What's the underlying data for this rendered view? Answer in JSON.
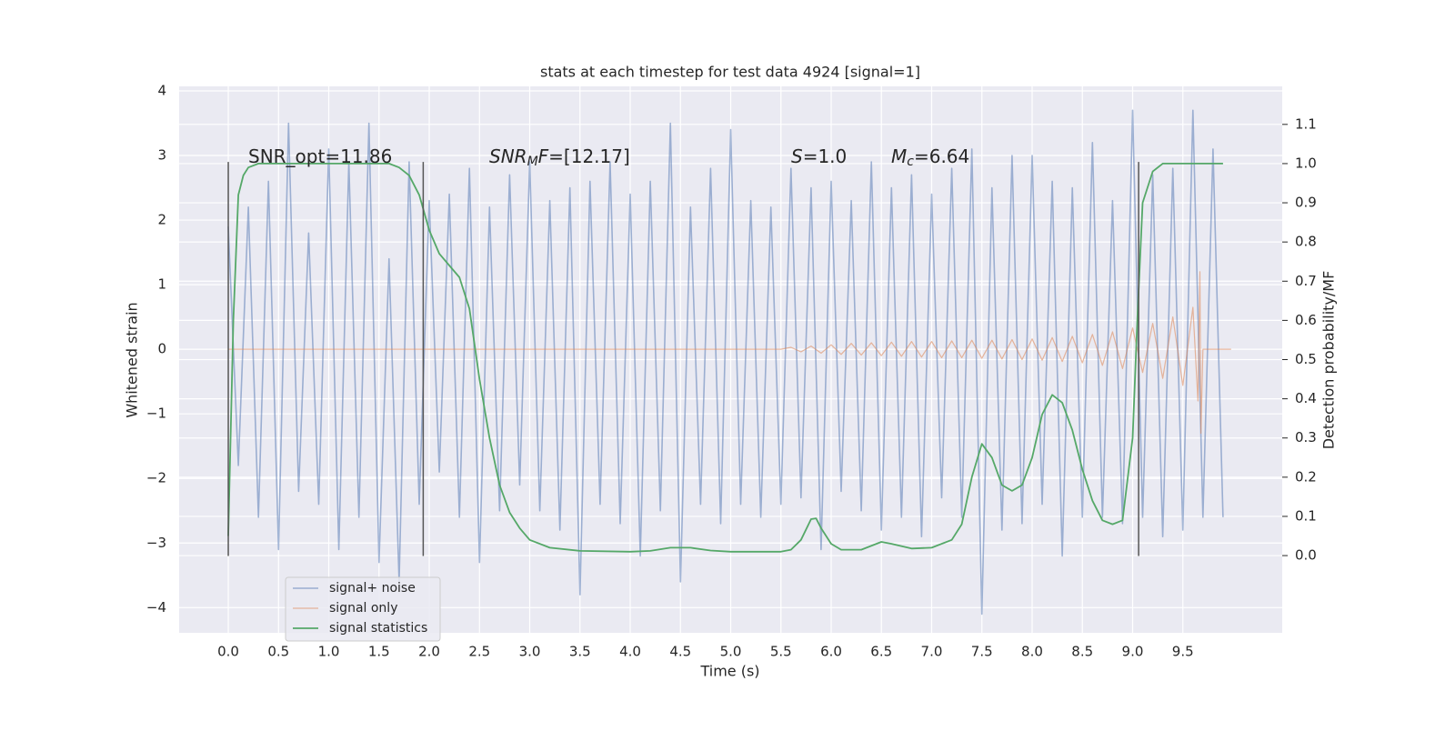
{
  "chart_data": {
    "type": "line",
    "title": "stats at each timestep for test data 4924 [signal=1]",
    "xlabel": "Time (s)",
    "ylabel": "Whitened strain",
    "y2label": "Detection probability/MF",
    "xlim": [
      -0.489,
      10.489
    ],
    "ylim": [
      -4.39,
      4.07
    ],
    "y2lim": [
      -0.197,
      1.197
    ],
    "xticks": [
      {
        "value": 0,
        "label": "0.0"
      },
      0.5,
      {
        "value": 1,
        "label": "1.0"
      },
      1.5,
      {
        "value": 2,
        "label": "2.0"
      },
      2.5,
      {
        "value": 3,
        "label": "3.0"
      },
      3.5,
      {
        "value": 4,
        "label": "4.0"
      },
      4.5,
      {
        "value": 5,
        "label": "5.0"
      },
      5.5,
      {
        "value": 6,
        "label": "6.0"
      },
      6.5,
      {
        "value": 7,
        "label": "7.0"
      },
      7.5,
      {
        "value": 8,
        "label": "8.0"
      },
      8.5,
      {
        "value": 9,
        "label": "9.0"
      },
      9.5
    ],
    "yticks": [
      {
        "value": -4,
        "label": "−4"
      },
      {
        "value": -3,
        "label": "−3"
      },
      {
        "value": -2,
        "label": "−2"
      },
      {
        "value": -1,
        "label": "−1"
      },
      0,
      1,
      2,
      3,
      4
    ],
    "y2ticks": [
      {
        "value": 0,
        "label": "0.0"
      },
      0.1,
      0.2,
      0.3,
      0.4,
      0.5,
      0.6,
      0.7,
      0.8,
      0.9,
      {
        "value": 1,
        "label": "1.0"
      },
      1.1
    ],
    "grid": true,
    "legend": "lower left",
    "series": [
      {
        "name": "signal+ noise",
        "color": "#4c72b0",
        "x": [
          0,
          0.1,
          0.2,
          0.3,
          0.4,
          0.5,
          0.6,
          0.7,
          0.8,
          0.9,
          1,
          1.1,
          1.2,
          1.3,
          1.4,
          1.5,
          1.6,
          1.7,
          1.8,
          1.9,
          2,
          2.1,
          2.2,
          2.3,
          2.4,
          2.5,
          2.6,
          2.7,
          2.8,
          2.9,
          3,
          3.1,
          3.2,
          3.3,
          3.4,
          3.5,
          3.6,
          3.7,
          3.8,
          3.9,
          4,
          4.1,
          4.2,
          4.3,
          4.4,
          4.5,
          4.6,
          4.7,
          4.8,
          4.9,
          5,
          5.1,
          5.2,
          5.3,
          5.4,
          5.5,
          5.6,
          5.7,
          5.8,
          5.9,
          6,
          6.1,
          6.2,
          6.3,
          6.4,
          6.5,
          6.6,
          6.7,
          6.8,
          6.9,
          7,
          7.1,
          7.2,
          7.3,
          7.4,
          7.5,
          7.6,
          7.7,
          7.8,
          7.9,
          8,
          8.1,
          8.2,
          8.3,
          8.4,
          8.5,
          8.6,
          8.7,
          8.8,
          8.9,
          9,
          9.1,
          9.2,
          9.3,
          9.4,
          9.5,
          9.6,
          9.7,
          9.8,
          9.9
        ],
        "values": [
          1.9,
          -1.8,
          2.2,
          -2.6,
          2.6,
          -3.1,
          3.5,
          -2.2,
          1.8,
          -2.4,
          3.1,
          -3.1,
          2.9,
          -2.6,
          3.5,
          -3.3,
          1.4,
          -3.6,
          2.9,
          -2.4,
          2.3,
          -1.9,
          2.4,
          -2.6,
          2.8,
          -3.3,
          2.2,
          -2.5,
          2.7,
          -2.1,
          2.9,
          -2.5,
          2.3,
          -2.8,
          2.5,
          -3.8,
          2.6,
          -2.4,
          2.9,
          -2.7,
          2.4,
          -3.2,
          2.6,
          -2.5,
          3.5,
          -3.6,
          2.2,
          -2.4,
          2.8,
          -2.7,
          3.4,
          -2.4,
          2.3,
          -2.6,
          2.2,
          -2.4,
          2.8,
          -2.3,
          2.5,
          -3.1,
          2.6,
          -2.2,
          2.3,
          -2.5,
          2.9,
          -2.8,
          2.5,
          -2.6,
          2.7,
          -2.9,
          2.4,
          -2.3,
          2.8,
          -2.6,
          3.1,
          -4.1,
          2.5,
          -2.8,
          3.0,
          -2.7,
          3.0,
          -2.4,
          2.6,
          -3.2,
          2.5,
          -2.6,
          3.2,
          -2.6,
          2.3,
          -2.7,
          3.7,
          -2.6,
          2.7,
          -2.9,
          2.8,
          -2.8,
          3.7,
          -2.6,
          3.1,
          -2.6
        ]
      },
      {
        "name": "signal only",
        "color": "#dd8452",
        "x": [
          0,
          5.5,
          5.6,
          5.7,
          5.8,
          5.9,
          6,
          6.1,
          6.2,
          6.3,
          6.4,
          6.5,
          6.6,
          6.7,
          6.8,
          6.9,
          7,
          7.1,
          7.2,
          7.3,
          7.4,
          7.5,
          7.6,
          7.7,
          7.8,
          7.9,
          8,
          8.1,
          8.2,
          8.3,
          8.4,
          8.5,
          8.6,
          8.7,
          8.8,
          8.9,
          9,
          9.1,
          9.2,
          9.3,
          9.4,
          9.5,
          9.6,
          9.65,
          9.67,
          9.68,
          9.7,
          9.98
        ],
        "values": [
          0,
          0,
          0.03,
          -0.04,
          0.05,
          -0.06,
          0.07,
          -0.08,
          0.09,
          -0.09,
          0.1,
          -0.1,
          0.11,
          -0.11,
          0.12,
          -0.12,
          0.12,
          -0.13,
          0.13,
          -0.13,
          0.14,
          -0.14,
          0.14,
          -0.15,
          0.15,
          -0.16,
          0.16,
          -0.17,
          0.18,
          -0.19,
          0.2,
          -0.21,
          0.23,
          -0.25,
          0.27,
          -0.3,
          0.33,
          -0.36,
          0.4,
          -0.45,
          0.5,
          -0.56,
          0.65,
          -0.8,
          1.2,
          -1.3,
          0,
          0
        ]
      },
      {
        "name": "signal statistics",
        "color": "#55a868",
        "axis": "y2",
        "x": [
          0,
          0.05,
          0.1,
          0.15,
          0.2,
          0.3,
          1,
          1.6,
          1.7,
          1.8,
          1.9,
          2,
          2.1,
          2.2,
          2.3,
          2.4,
          2.5,
          2.6,
          2.7,
          2.8,
          2.9,
          3,
          3.2,
          3.5,
          4,
          4.2,
          4.4,
          4.6,
          4.8,
          5,
          5.5,
          5.6,
          5.7,
          5.8,
          5.85,
          5.9,
          6,
          6.1,
          6.3,
          6.5,
          6.6,
          6.8,
          7,
          7.2,
          7.3,
          7.4,
          7.5,
          7.6,
          7.7,
          7.8,
          7.9,
          8,
          8.1,
          8.2,
          8.3,
          8.4,
          8.5,
          8.6,
          8.7,
          8.8,
          8.9,
          9,
          9.05,
          9.1,
          9.2,
          9.3,
          9.9
        ],
        "values": [
          0.05,
          0.6,
          0.92,
          0.97,
          0.99,
          1.0,
          1.0,
          1.0,
          0.99,
          0.97,
          0.92,
          0.83,
          0.77,
          0.74,
          0.71,
          0.63,
          0.45,
          0.3,
          0.18,
          0.11,
          0.07,
          0.04,
          0.02,
          0.012,
          0.01,
          0.012,
          0.02,
          0.02,
          0.013,
          0.01,
          0.01,
          0.015,
          0.04,
          0.093,
          0.095,
          0.07,
          0.03,
          0.015,
          0.015,
          0.035,
          0.03,
          0.018,
          0.02,
          0.04,
          0.08,
          0.2,
          0.285,
          0.25,
          0.18,
          0.165,
          0.18,
          0.25,
          0.36,
          0.41,
          0.39,
          0.32,
          0.22,
          0.14,
          0.09,
          0.08,
          0.09,
          0.3,
          0.62,
          0.9,
          0.98,
          1.0,
          1.0
        ]
      }
    ],
    "vlines": {
      "x": [
        0,
        1.94,
        9.06
      ],
      "ymin": -3.2,
      "ymax": 2.9,
      "color": "#555555"
    },
    "annotations": [
      {
        "segments": [
          {
            "text": "SNR_opt=11.86"
          }
        ]
      },
      {
        "segments": [
          {
            "text": "SNR",
            "italic": true
          },
          {
            "text": "M",
            "italic": true,
            "sub": true
          },
          {
            "text": "F",
            "italic": true
          },
          {
            "text": "=[12.17]"
          }
        ]
      },
      {
        "segments": [
          {
            "text": "S",
            "italic": true
          },
          {
            "text": "=1.0"
          }
        ]
      },
      {
        "segments": [
          {
            "text": "M",
            "italic": true
          },
          {
            "text": "c",
            "italic": true,
            "sub": true
          },
          {
            "text": "=6.64"
          }
        ]
      }
    ]
  }
}
